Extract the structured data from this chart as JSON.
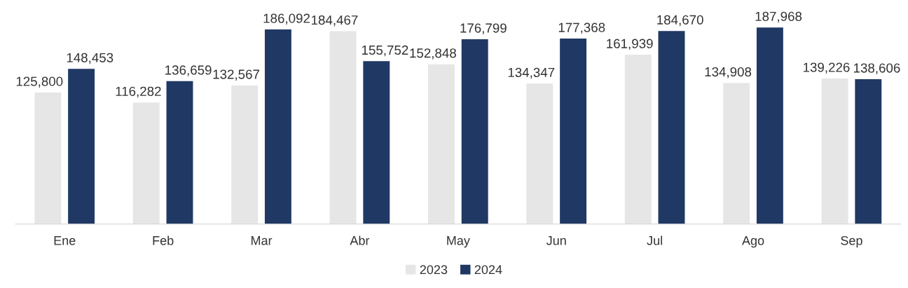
{
  "chart_data": {
    "type": "bar",
    "categories": [
      "Ene",
      "Feb",
      "Mar",
      "Abr",
      "May",
      "Jun",
      "Jul",
      "Ago",
      "Sep"
    ],
    "series": [
      {
        "name": "2023",
        "color": "#e7e6e6",
        "values": [
          125800,
          116282,
          132567,
          184467,
          152848,
          134347,
          161939,
          134908,
          139226
        ],
        "value_labels": [
          "125,800",
          "116,282",
          "132,567",
          "184,467",
          "152,848",
          "134,347",
          "161,939",
          "134,908",
          "139,226"
        ]
      },
      {
        "name": "2024",
        "color": "#203864",
        "values": [
          148453,
          136659,
          186092,
          155752,
          176799,
          177368,
          184670,
          187968,
          138606
        ],
        "value_labels": [
          "148,453",
          "136,659",
          "186,092",
          "155,752",
          "176,799",
          "177,368",
          "184,670",
          "187,968",
          "138,606"
        ]
      }
    ],
    "tick_labels": "x",
    "legend": "bottom",
    "grid": false
  }
}
